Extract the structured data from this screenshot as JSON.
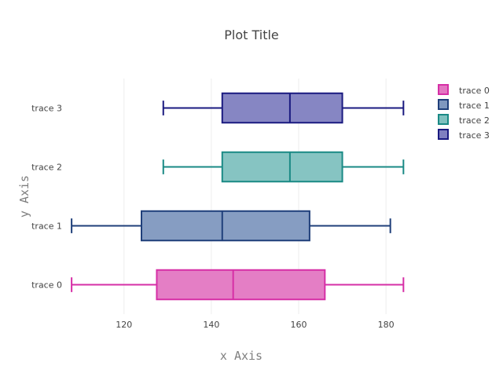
{
  "chart_data": {
    "type": "box",
    "orientation": "horizontal",
    "title": "Plot Title",
    "xlabel": "x Axis",
    "ylabel": "y Axis",
    "xlim": [
      106,
      187
    ],
    "xticks": [
      120,
      140,
      160,
      180
    ],
    "grid": true,
    "legend_position": "top-right",
    "series": [
      {
        "name": "trace 0",
        "color": "#e377c2",
        "line": "#d62fa6",
        "min": 108,
        "q1": 127.5,
        "median": 145,
        "q3": 166,
        "max": 184
      },
      {
        "name": "trace 1",
        "color": "#7f98bf",
        "line": "#1f3f7a",
        "min": 108,
        "q1": 124,
        "median": 142.5,
        "q3": 162.5,
        "max": 181
      },
      {
        "name": "trace 2",
        "color": "#7fc1bf",
        "line": "#1a8a85",
        "min": 129,
        "q1": 142.5,
        "median": 158,
        "q3": 170,
        "max": 184
      },
      {
        "name": "trace 3",
        "color": "#8080c0",
        "line": "#1a1a80",
        "min": 129,
        "q1": 142.5,
        "median": 158,
        "q3": 170,
        "max": 184
      }
    ]
  }
}
